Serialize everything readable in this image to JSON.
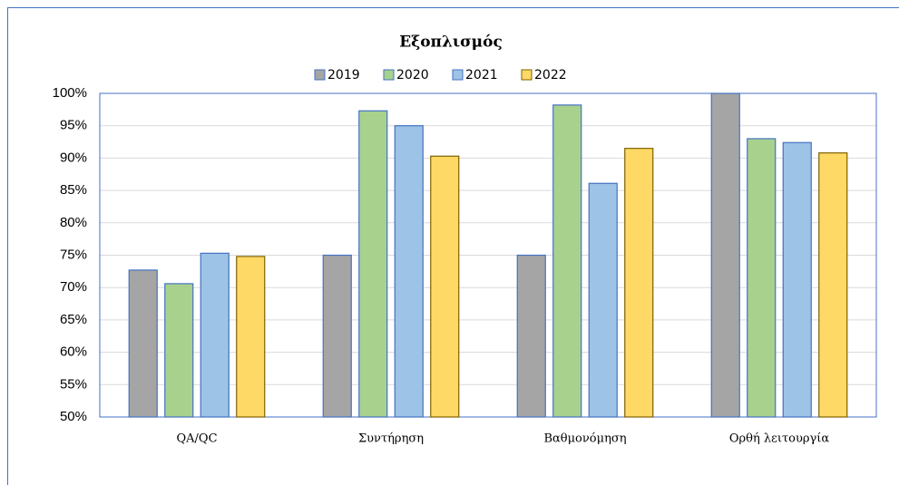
{
  "chart_data": {
    "type": "bar",
    "title": "Εξοπλισμός",
    "categories": [
      "QA/QC",
      "Συντήρηση",
      "Βαθμονόμηση",
      "Ορθή λειτουργία"
    ],
    "series": [
      {
        "name": "2019",
        "color": "#a5a5a5",
        "values": [
          72.7,
          75.0,
          75.0,
          100
        ]
      },
      {
        "name": "2020",
        "color": "#a9d18e",
        "values": [
          70.6,
          97.3,
          98.2,
          93.0
        ]
      },
      {
        "name": "2021",
        "color": "#9dc3e6",
        "values": [
          75.3,
          95.0,
          86.1,
          92.4
        ]
      },
      {
        "name": "2022",
        "color": "#ffd966",
        "values": [
          74.8,
          90.3,
          91.5,
          90.8
        ]
      }
    ],
    "ylim": [
      50,
      100
    ],
    "yticks": [
      {
        "value": 50,
        "label": "50%"
      },
      {
        "value": 55,
        "label": "55%"
      },
      {
        "value": 60,
        "label": "60%"
      },
      {
        "value": 65,
        "label": "65%"
      },
      {
        "value": 70,
        "label": "70%"
      },
      {
        "value": 75,
        "label": "75%"
      },
      {
        "value": 80,
        "label": "80%"
      },
      {
        "value": 85,
        "label": "85%"
      },
      {
        "value": 90,
        "label": "90%"
      },
      {
        "value": 95,
        "label": "95%"
      },
      {
        "value": 100,
        "label": "100%"
      }
    ],
    "grid": true,
    "legend": "top"
  }
}
